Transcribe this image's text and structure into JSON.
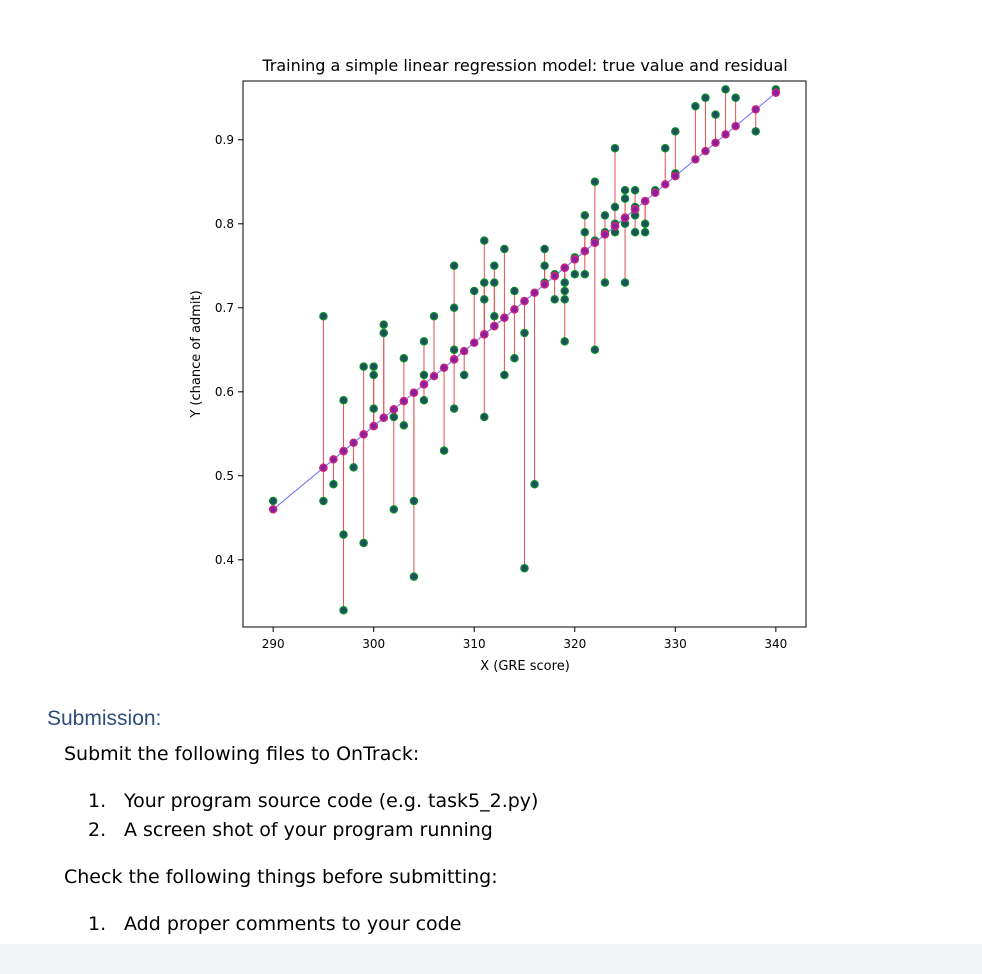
{
  "chart_data": {
    "type": "scatter",
    "title": "Training a simple linear regression model: true value and residual",
    "xlabel": "X (GRE score)",
    "ylabel": "Y (chance of admit)",
    "xlim": [
      287,
      343
    ],
    "ylim": [
      0.32,
      0.97
    ],
    "xticks": [
      290,
      300,
      310,
      320,
      330,
      340
    ],
    "yticks": [
      0.4,
      0.5,
      0.6,
      0.7,
      0.8,
      0.9
    ],
    "grid": false,
    "regression_line": {
      "x": [
        290,
        340
      ],
      "y": [
        0.46,
        0.956
      ]
    },
    "points": [
      [
        290,
        0.47
      ],
      [
        295,
        0.69
      ],
      [
        295,
        0.47
      ],
      [
        296,
        0.49
      ],
      [
        297,
        0.59
      ],
      [
        297,
        0.43
      ],
      [
        297,
        0.34
      ],
      [
        298,
        0.51
      ],
      [
        299,
        0.63
      ],
      [
        299,
        0.42
      ],
      [
        300,
        0.63
      ],
      [
        300,
        0.62
      ],
      [
        300,
        0.58
      ],
      [
        301,
        0.68
      ],
      [
        301,
        0.67
      ],
      [
        302,
        0.57
      ],
      [
        302,
        0.46
      ],
      [
        303,
        0.64
      ],
      [
        303,
        0.56
      ],
      [
        304,
        0.47
      ],
      [
        304,
        0.38
      ],
      [
        305,
        0.66
      ],
      [
        305,
        0.62
      ],
      [
        305,
        0.59
      ],
      [
        306,
        0.69
      ],
      [
        307,
        0.53
      ],
      [
        308,
        0.75
      ],
      [
        308,
        0.7
      ],
      [
        308,
        0.65
      ],
      [
        308,
        0.58
      ],
      [
        309,
        0.62
      ],
      [
        310,
        0.72
      ],
      [
        311,
        0.78
      ],
      [
        311,
        0.73
      ],
      [
        311,
        0.71
      ],
      [
        311,
        0.57
      ],
      [
        312,
        0.75
      ],
      [
        312,
        0.73
      ],
      [
        312,
        0.69
      ],
      [
        313,
        0.77
      ],
      [
        313,
        0.62
      ],
      [
        314,
        0.72
      ],
      [
        314,
        0.64
      ],
      [
        315,
        0.67
      ],
      [
        316,
        0.49
      ],
      [
        315,
        0.39
      ],
      [
        317,
        0.77
      ],
      [
        317,
        0.75
      ],
      [
        317,
        0.73
      ],
      [
        318,
        0.74
      ],
      [
        318,
        0.71
      ],
      [
        319,
        0.73
      ],
      [
        319,
        0.72
      ],
      [
        319,
        0.71
      ],
      [
        319,
        0.66
      ],
      [
        320,
        0.76
      ],
      [
        320,
        0.74
      ],
      [
        321,
        0.81
      ],
      [
        321,
        0.79
      ],
      [
        321,
        0.74
      ],
      [
        322,
        0.85
      ],
      [
        322,
        0.78
      ],
      [
        322,
        0.65
      ],
      [
        323,
        0.81
      ],
      [
        323,
        0.79
      ],
      [
        323,
        0.73
      ],
      [
        324,
        0.89
      ],
      [
        324,
        0.82
      ],
      [
        324,
        0.8
      ],
      [
        324,
        0.79
      ],
      [
        325,
        0.84
      ],
      [
        325,
        0.83
      ],
      [
        325,
        0.8
      ],
      [
        325,
        0.73
      ],
      [
        326,
        0.84
      ],
      [
        326,
        0.82
      ],
      [
        326,
        0.81
      ],
      [
        326,
        0.79
      ],
      [
        327,
        0.8
      ],
      [
        327,
        0.79
      ],
      [
        328,
        0.84
      ],
      [
        329,
        0.89
      ],
      [
        330,
        0.91
      ],
      [
        330,
        0.86
      ],
      [
        332,
        0.94
      ],
      [
        333,
        0.95
      ],
      [
        334,
        0.93
      ],
      [
        335,
        0.96
      ],
      [
        336,
        0.95
      ],
      [
        338,
        0.91
      ],
      [
        340,
        0.96
      ]
    ]
  },
  "document": {
    "submission_heading": "Submission:",
    "submit_intro": "Submit the following files to OnTrack:",
    "submit_items": [
      {
        "num": "1.",
        "text": "Your program source code (e.g. task5_2.py)"
      },
      {
        "num": "2.",
        "text": "A screen shot of your program running"
      }
    ],
    "check_intro": "Check the following things before submitting:",
    "check_items": [
      {
        "num": "1.",
        "text": "Add proper comments to your code"
      }
    ]
  },
  "colors": {
    "regression_line": "#6a6aff",
    "residual_line": "#e45050",
    "true_point_fill": "#1f4e5f",
    "true_point_edge": "#0a8a2a",
    "pred_point_fill": "#8a1fa0",
    "pred_point_edge": "#d0287a",
    "heading": "#2e4d7b"
  }
}
